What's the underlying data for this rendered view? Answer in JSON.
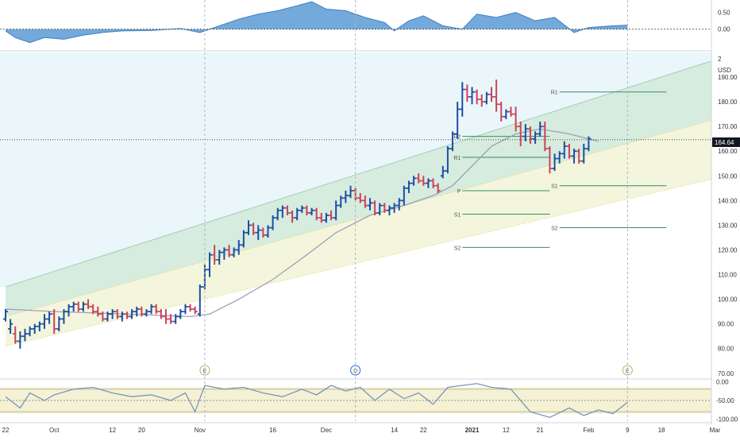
{
  "chart_data": {
    "type": "ohlc",
    "currency": "USD",
    "last_price": "164.64",
    "price_axis": {
      "ylim": [
        68,
        200
      ],
      "ticks": [
        "190.00",
        "180.00",
        "170.00",
        "160.00",
        "150.00",
        "140.00",
        "130.00",
        "120.00",
        "110.00",
        "100.00",
        "90.00",
        "80.00",
        "70.00"
      ],
      "top_label": "2"
    },
    "top_oscillator": {
      "ylim": [
        -0.6,
        0.8
      ],
      "ticks": [
        "0.50",
        "0.00"
      ]
    },
    "bottom_oscillator": {
      "ylim": [
        -105,
        5
      ],
      "ticks": [
        "0.00",
        "-50.00",
        "-100.00"
      ]
    },
    "x_axis": {
      "ticks": [
        {
          "label": "22",
          "d": 0
        },
        {
          "label": "Oct",
          "d": 10
        },
        {
          "label": "12",
          "d": 22
        },
        {
          "label": "20",
          "d": 28
        },
        {
          "label": "Nov",
          "d": 40
        },
        {
          "label": "16",
          "d": 55
        },
        {
          "label": "Dec",
          "d": 66
        },
        {
          "label": "14",
          "d": 80
        },
        {
          "label": "22",
          "d": 86
        },
        {
          "label": "2021",
          "d": 96
        },
        {
          "label": "12",
          "d": 103
        },
        {
          "label": "21",
          "d": 110
        },
        {
          "label": "Feb",
          "d": 120
        },
        {
          "label": "9",
          "d": 128
        },
        {
          "label": "18",
          "d": 135
        },
        {
          "label": "Mar",
          "d": 146
        }
      ]
    },
    "candles": [
      [
        0,
        92,
        96,
        91,
        95
      ],
      [
        1,
        88,
        92,
        86,
        90
      ],
      [
        2,
        86,
        89,
        82,
        83
      ],
      [
        3,
        83,
        87,
        80,
        85
      ],
      [
        4,
        85,
        88,
        83,
        86
      ],
      [
        5,
        86,
        89,
        85,
        88
      ],
      [
        6,
        88,
        90,
        86,
        89
      ],
      [
        7,
        89,
        91,
        87,
        90
      ],
      [
        8,
        90,
        94,
        88,
        92
      ],
      [
        9,
        92,
        95,
        90,
        94
      ],
      [
        10,
        94,
        96,
        86,
        88
      ],
      [
        11,
        88,
        93,
        87,
        92
      ],
      [
        12,
        92,
        96,
        90,
        95
      ],
      [
        13,
        95,
        98,
        93,
        97
      ],
      [
        14,
        97,
        99,
        95,
        98
      ],
      [
        15,
        98,
        99,
        95,
        96
      ],
      [
        16,
        96,
        99,
        95,
        98
      ],
      [
        17,
        98,
        100,
        96,
        97
      ],
      [
        18,
        97,
        98,
        94,
        95
      ],
      [
        19,
        95,
        97,
        93,
        94
      ],
      [
        20,
        94,
        95,
        91,
        92
      ],
      [
        21,
        92,
        95,
        91,
        94
      ],
      [
        22,
        94,
        96,
        92,
        95
      ],
      [
        23,
        95,
        96,
        92,
        93
      ],
      [
        24,
        93,
        95,
        91,
        94
      ],
      [
        25,
        94,
        95,
        92,
        93
      ],
      [
        26,
        93,
        96,
        92,
        95
      ],
      [
        27,
        95,
        97,
        93,
        96
      ],
      [
        28,
        96,
        97,
        93,
        94
      ],
      [
        29,
        94,
        96,
        93,
        95
      ],
      [
        30,
        95,
        98,
        94,
        97
      ],
      [
        31,
        97,
        98,
        94,
        95
      ],
      [
        32,
        95,
        96,
        92,
        93
      ],
      [
        33,
        93,
        96,
        90,
        92
      ],
      [
        34,
        92,
        94,
        90,
        91
      ],
      [
        35,
        91,
        94,
        90,
        93
      ],
      [
        36,
        93,
        96,
        92,
        95
      ],
      [
        37,
        95,
        98,
        94,
        97
      ],
      [
        38,
        97,
        98,
        95,
        96
      ],
      [
        39,
        96,
        97,
        94,
        95
      ],
      [
        40,
        94,
        106,
        93,
        105
      ],
      [
        41,
        105,
        114,
        104,
        112
      ],
      [
        42,
        112,
        119,
        109,
        118
      ],
      [
        43,
        118,
        122,
        114,
        116
      ],
      [
        44,
        116,
        120,
        114,
        119
      ],
      [
        45,
        119,
        121,
        116,
        120
      ],
      [
        46,
        120,
        122,
        117,
        118
      ],
      [
        47,
        118,
        121,
        117,
        120
      ],
      [
        48,
        120,
        124,
        118,
        122
      ],
      [
        49,
        122,
        128,
        121,
        127
      ],
      [
        50,
        127,
        132,
        126,
        130
      ],
      [
        51,
        130,
        131,
        126,
        127
      ],
      [
        52,
        127,
        130,
        124,
        128
      ],
      [
        53,
        128,
        129,
        125,
        126
      ],
      [
        54,
        126,
        130,
        125,
        129
      ],
      [
        55,
        129,
        134,
        128,
        133
      ],
      [
        56,
        133,
        137,
        132,
        136
      ],
      [
        57,
        136,
        138,
        133,
        137
      ],
      [
        58,
        137,
        138,
        134,
        135
      ],
      [
        59,
        135,
        136,
        131,
        133
      ],
      [
        60,
        133,
        137,
        132,
        136
      ],
      [
        61,
        136,
        138,
        135,
        137
      ],
      [
        62,
        137,
        138,
        134,
        135
      ],
      [
        63,
        135,
        137,
        134,
        136
      ],
      [
        64,
        136,
        137,
        132,
        133
      ],
      [
        65,
        133,
        135,
        131,
        132
      ],
      [
        66,
        132,
        135,
        131,
        134
      ],
      [
        67,
        134,
        136,
        132,
        133
      ],
      [
        68,
        133,
        140,
        132,
        138
      ],
      [
        69,
        138,
        142,
        137,
        141
      ],
      [
        70,
        141,
        144,
        139,
        142
      ],
      [
        71,
        142,
        146,
        141,
        144
      ],
      [
        72,
        144,
        145,
        140,
        141
      ],
      [
        73,
        141,
        143,
        139,
        140
      ],
      [
        74,
        140,
        142,
        137,
        138
      ],
      [
        75,
        138,
        141,
        136,
        139
      ],
      [
        76,
        139,
        140,
        134,
        135
      ],
      [
        77,
        135,
        139,
        134,
        138
      ],
      [
        78,
        138,
        139,
        135,
        136
      ],
      [
        79,
        136,
        138,
        134,
        137
      ],
      [
        80,
        137,
        139,
        135,
        138
      ],
      [
        81,
        138,
        141,
        136,
        140
      ],
      [
        82,
        140,
        146,
        138,
        145
      ],
      [
        83,
        145,
        148,
        143,
        147
      ],
      [
        84,
        147,
        150,
        146,
        149
      ],
      [
        85,
        149,
        151,
        147,
        148
      ],
      [
        86,
        148,
        150,
        146,
        147
      ],
      [
        87,
        147,
        149,
        145,
        148
      ],
      [
        88,
        148,
        149,
        145,
        146
      ],
      [
        89,
        146,
        147,
        143,
        144
      ],
      [
        90,
        150,
        154,
        149,
        152
      ],
      [
        91,
        152,
        162,
        151,
        161
      ],
      [
        92,
        161,
        168,
        160,
        167
      ],
      [
        93,
        167,
        180,
        165,
        177
      ],
      [
        94,
        177,
        188,
        174,
        185
      ],
      [
        95,
        185,
        187,
        180,
        182
      ],
      [
        96,
        182,
        186,
        179,
        184
      ],
      [
        97,
        184,
        185,
        179,
        181
      ],
      [
        98,
        181,
        183,
        178,
        180
      ],
      [
        99,
        180,
        184,
        179,
        183
      ],
      [
        100,
        183,
        186,
        180,
        182
      ],
      [
        101,
        182,
        189,
        176,
        179
      ],
      [
        102,
        179,
        180,
        172,
        174
      ],
      [
        103,
        174,
        177,
        173,
        176
      ],
      [
        104,
        176,
        178,
        174,
        175
      ],
      [
        105,
        175,
        178,
        168,
        170
      ],
      [
        106,
        170,
        172,
        162,
        166
      ],
      [
        107,
        166,
        171,
        164,
        169
      ],
      [
        108,
        169,
        170,
        163,
        165
      ],
      [
        109,
        165,
        168,
        163,
        167
      ],
      [
        110,
        167,
        172,
        166,
        170
      ],
      [
        111,
        170,
        172,
        160,
        161
      ],
      [
        112,
        161,
        162,
        151,
        153
      ],
      [
        113,
        153,
        159,
        152,
        157
      ],
      [
        114,
        157,
        160,
        155,
        159
      ],
      [
        115,
        159,
        164,
        157,
        162
      ],
      [
        116,
        162,
        163,
        157,
        158
      ],
      [
        117,
        158,
        161,
        155,
        160
      ],
      [
        118,
        160,
        161,
        155,
        156
      ],
      [
        119,
        156,
        163,
        155,
        161
      ],
      [
        120,
        161,
        166,
        160,
        165
      ]
    ],
    "moving_average": [
      [
        0,
        96
      ],
      [
        10,
        95
      ],
      [
        25,
        94
      ],
      [
        38,
        93
      ],
      [
        42,
        94
      ],
      [
        48,
        100
      ],
      [
        55,
        108
      ],
      [
        62,
        118
      ],
      [
        68,
        127
      ],
      [
        75,
        134
      ],
      [
        82,
        138
      ],
      [
        88,
        142
      ],
      [
        92,
        146
      ],
      [
        96,
        154
      ],
      [
        100,
        162
      ],
      [
        105,
        167
      ],
      [
        110,
        169
      ],
      [
        116,
        167
      ],
      [
        120,
        165
      ],
      [
        122,
        164
      ]
    ],
    "channel": {
      "upper": [
        [
          0,
          105
        ],
        [
          146,
          197
        ]
      ],
      "mid": [
        [
          0,
          93
        ],
        [
          146,
          173
        ]
      ],
      "lower": [
        [
          0,
          81
        ],
        [
          146,
          149
        ]
      ]
    },
    "pivots": [
      {
        "label": "R2",
        "value": 166,
        "from": 94,
        "to": 112
      },
      {
        "label": "R1",
        "value": 157.5,
        "from": 94,
        "to": 112
      },
      {
        "label": "P",
        "value": 144,
        "from": 94,
        "to": 112
      },
      {
        "label": "S1",
        "value": 134.5,
        "from": 94,
        "to": 112
      },
      {
        "label": "S2",
        "value": 121,
        "from": 94,
        "to": 112
      },
      {
        "label": "R1",
        "value": 184,
        "from": 114,
        "to": 136
      },
      {
        "label": "S1",
        "value": 146,
        "from": 114,
        "to": 136
      },
      {
        "label": "S2",
        "value": 129,
        "from": 114,
        "to": 136
      }
    ],
    "events": [
      {
        "label": "E",
        "d": 41
      },
      {
        "label": "D",
        "d": 72
      },
      {
        "label": "E",
        "d": 128
      }
    ],
    "top_oscillator_values": [
      [
        0,
        -0.05
      ],
      [
        2,
        -0.25
      ],
      [
        5,
        -0.4
      ],
      [
        8,
        -0.25
      ],
      [
        12,
        -0.3
      ],
      [
        16,
        -0.18
      ],
      [
        20,
        -0.1
      ],
      [
        24,
        -0.05
      ],
      [
        30,
        -0.04
      ],
      [
        36,
        0.02
      ],
      [
        40,
        -0.1
      ],
      [
        43,
        0.05
      ],
      [
        48,
        0.3
      ],
      [
        52,
        0.45
      ],
      [
        56,
        0.55
      ],
      [
        60,
        0.7
      ],
      [
        63,
        0.82
      ],
      [
        66,
        0.6
      ],
      [
        70,
        0.55
      ],
      [
        74,
        0.35
      ],
      [
        78,
        0.2
      ],
      [
        80,
        -0.05
      ],
      [
        83,
        0.25
      ],
      [
        86,
        0.4
      ],
      [
        90,
        0.1
      ],
      [
        94,
        0.0
      ],
      [
        97,
        0.45
      ],
      [
        101,
        0.35
      ],
      [
        105,
        0.5
      ],
      [
        109,
        0.25
      ],
      [
        113,
        0.35
      ],
      [
        117,
        -0.1
      ],
      [
        120,
        0.05
      ],
      [
        125,
        0.1
      ],
      [
        128,
        0.12
      ]
    ],
    "bottom_oscillator_values": [
      [
        0,
        -40
      ],
      [
        3,
        -70
      ],
      [
        5,
        -30
      ],
      [
        8,
        -50
      ],
      [
        10,
        -35
      ],
      [
        14,
        -20
      ],
      [
        18,
        -15
      ],
      [
        22,
        -30
      ],
      [
        26,
        -40
      ],
      [
        30,
        -35
      ],
      [
        34,
        -50
      ],
      [
        37,
        -30
      ],
      [
        39,
        -80
      ],
      [
        41,
        -10
      ],
      [
        45,
        -20
      ],
      [
        49,
        -15
      ],
      [
        53,
        -30
      ],
      [
        57,
        -40
      ],
      [
        61,
        -20
      ],
      [
        64,
        -35
      ],
      [
        67,
        -10
      ],
      [
        70,
        -25
      ],
      [
        73,
        -15
      ],
      [
        76,
        -50
      ],
      [
        79,
        -20
      ],
      [
        82,
        -45
      ],
      [
        85,
        -30
      ],
      [
        88,
        -60
      ],
      [
        91,
        -15
      ],
      [
        94,
        -10
      ],
      [
        97,
        -5
      ],
      [
        100,
        -15
      ],
      [
        104,
        -20
      ],
      [
        108,
        -80
      ],
      [
        112,
        -95
      ],
      [
        116,
        -70
      ],
      [
        119,
        -90
      ],
      [
        122,
        -75
      ],
      [
        125,
        -85
      ],
      [
        128,
        -55
      ]
    ]
  }
}
